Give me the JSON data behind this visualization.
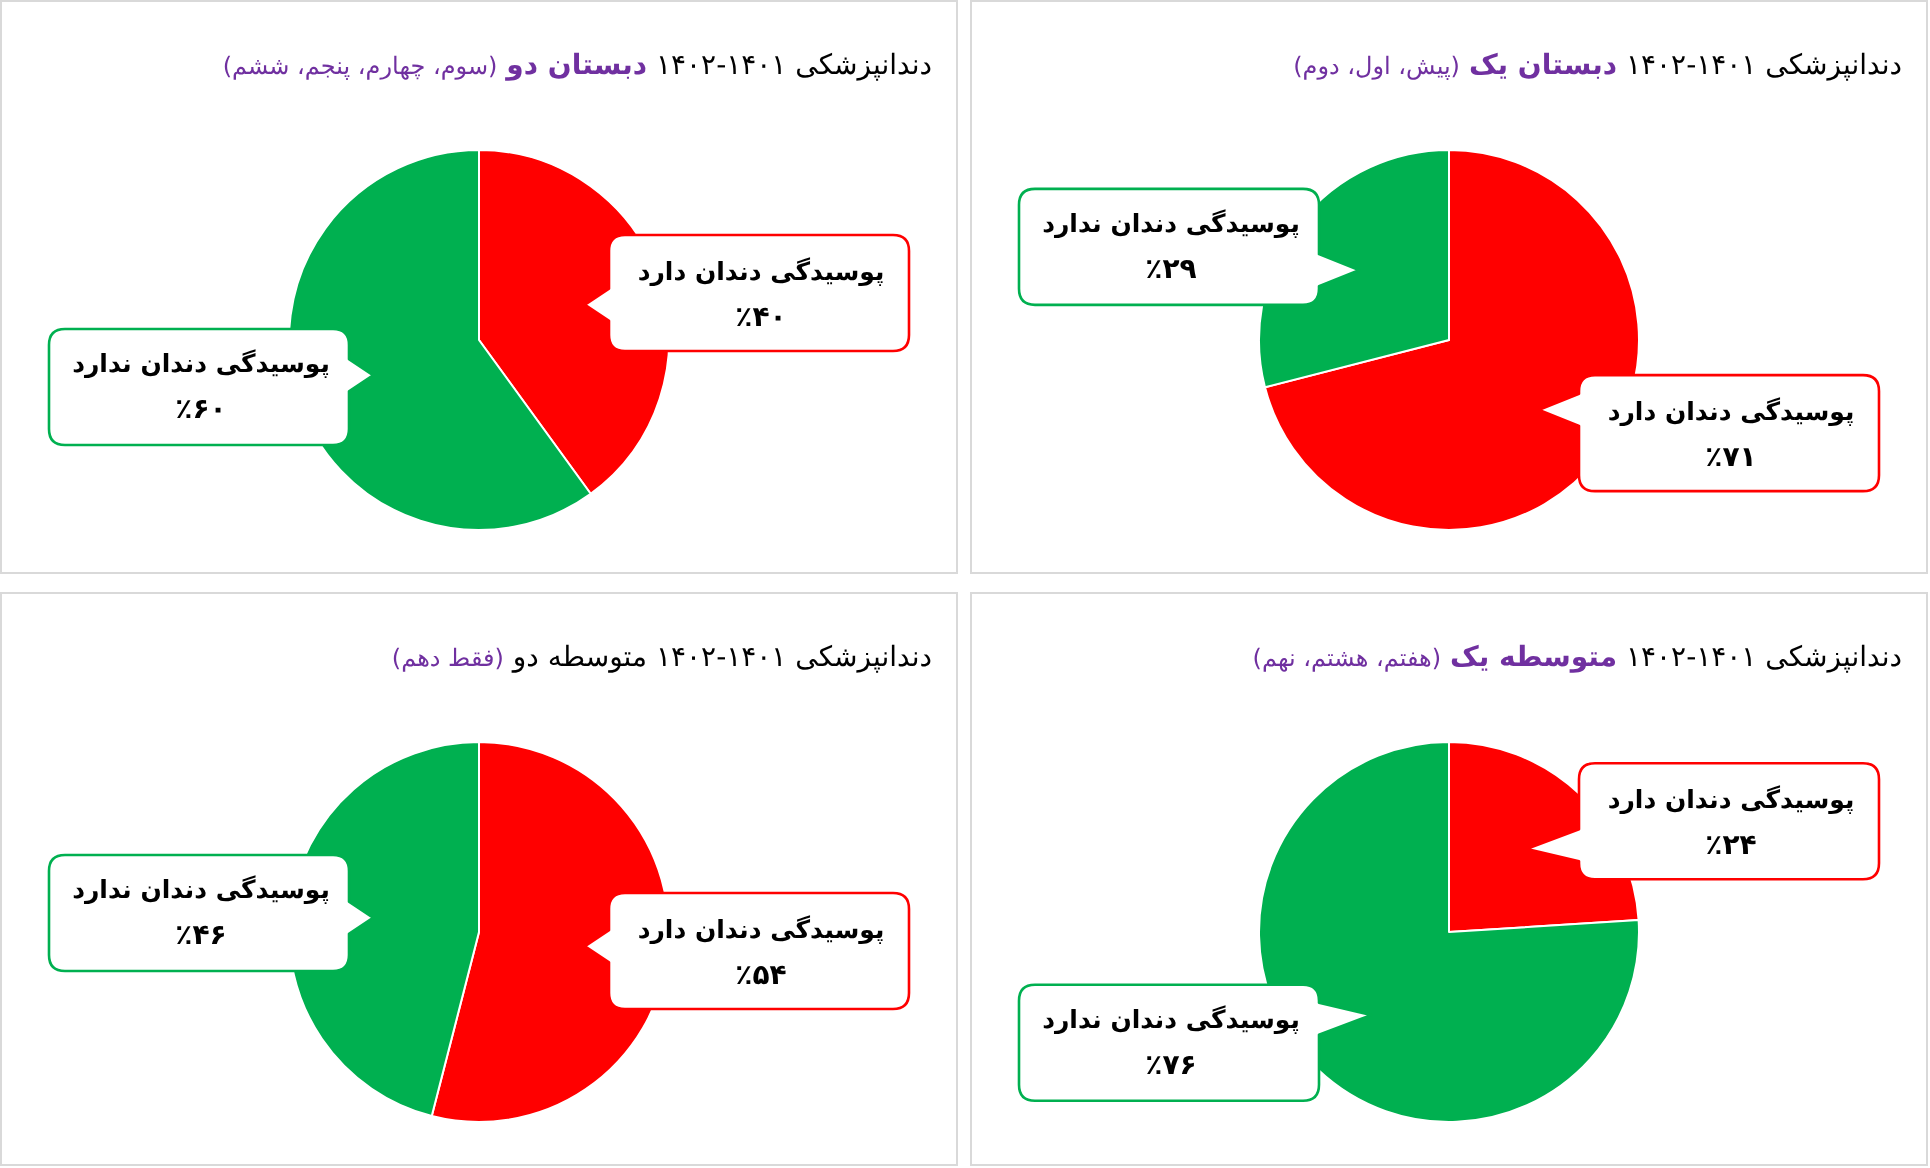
{
  "chart_data": [
    {
      "type": "pie",
      "title": "دندانپزشکی ۱۴۰۱-۱۴۰۲ **دبستان یک**",
      "subtitle": "(پیش، اول، دوم)",
      "categories": [
        "پوسیدگی دندان دارد",
        "پوسیدگی دندان ندارد"
      ],
      "values": [
        71,
        29
      ],
      "value_labels": [
        "٪۷۱",
        "٪۲۹"
      ],
      "colors": [
        "#ff0000",
        "#00b050"
      ]
    },
    {
      "type": "pie",
      "title": "دندانپزشکی ۱۴۰۱-۱۴۰۲ **دبستان دو**",
      "subtitle": "(سوم، چهارم، پنجم، ششم)",
      "categories": [
        "پوسیدگی دندان دارد",
        "پوسیدگی دندان ندارد"
      ],
      "values": [
        40,
        60
      ],
      "value_labels": [
        "٪۴۰",
        "٪۶۰"
      ],
      "colors": [
        "#ff0000",
        "#00b050"
      ]
    },
    {
      "type": "pie",
      "title": "دندانپزشکی ۱۴۰۱-۱۴۰۲ **متوسطه یک**",
      "subtitle": "(هفتم، هشتم، نهم)",
      "categories": [
        "پوسیدگی دندان دارد",
        "پوسیدگی دندان ندارد"
      ],
      "values": [
        24,
        76
      ],
      "value_labels": [
        "٪۲۴",
        "٪۷۶"
      ],
      "colors": [
        "#ff0000",
        "#00b050"
      ]
    },
    {
      "type": "pie",
      "title": "دندانپزشکی ۱۴۰۱-۱۴۰۲ متوسطه دو",
      "subtitle": "(فقط دهم)",
      "categories": [
        "پوسیدگی دندان دارد",
        "پوسیدگی دندان ندارد"
      ],
      "values": [
        54,
        46
      ],
      "value_labels": [
        "٪۵۴",
        "٪۴۶"
      ],
      "colors": [
        "#ff0000",
        "#00b050"
      ]
    }
  ]
}
